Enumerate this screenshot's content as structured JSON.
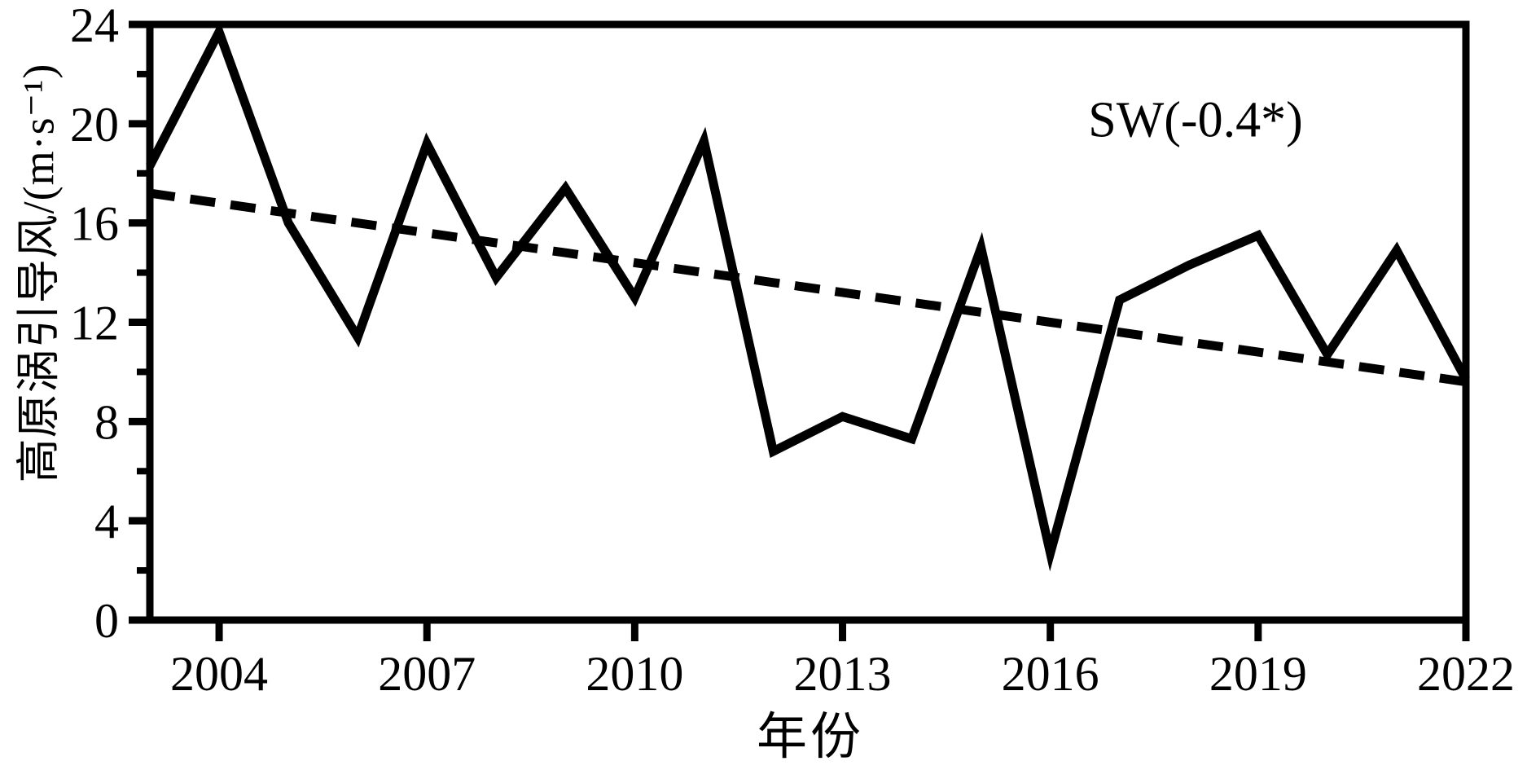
{
  "chart_data": {
    "type": "line",
    "title": "",
    "xlabel": "年份",
    "ylabel": "高原涡引导风/(m·s⁻¹)",
    "annotation": "SW(-0.4*)",
    "x": [
      2003,
      2004,
      2005,
      2006,
      2007,
      2008,
      2009,
      2010,
      2011,
      2012,
      2013,
      2014,
      2015,
      2016,
      2017,
      2018,
      2019,
      2020,
      2021,
      2022
    ],
    "series": [
      {
        "name": "plateau-vortex-steering-wind",
        "style": "solid",
        "values": [
          18.3,
          23.7,
          16.0,
          11.4,
          19.2,
          13.8,
          17.4,
          13.0,
          19.3,
          6.8,
          8.2,
          7.3,
          15.0,
          2.7,
          12.9,
          14.3,
          15.5,
          10.7,
          14.9,
          9.7
        ]
      },
      {
        "name": "linear-trend",
        "style": "dashed",
        "values": [
          17.2,
          16.8,
          16.4,
          16.0,
          15.6,
          15.2,
          14.8,
          14.4,
          14.0,
          13.6,
          13.2,
          12.8,
          12.4,
          12.0,
          11.6,
          11.2,
          10.8,
          10.4,
          10.0,
          9.6
        ]
      }
    ],
    "xlim": [
      2003,
      2022
    ],
    "ylim": [
      0,
      24
    ],
    "x_ticks": [
      2004,
      2007,
      2010,
      2013,
      2016,
      2019,
      2022
    ],
    "y_ticks": [
      0,
      4,
      8,
      12,
      16,
      20,
      24
    ],
    "y_minor_ticks": [
      2,
      6,
      10,
      14,
      18,
      22
    ],
    "grid": false,
    "legend_position": "none",
    "line_color": "#000000",
    "background_color": "#ffffff"
  }
}
